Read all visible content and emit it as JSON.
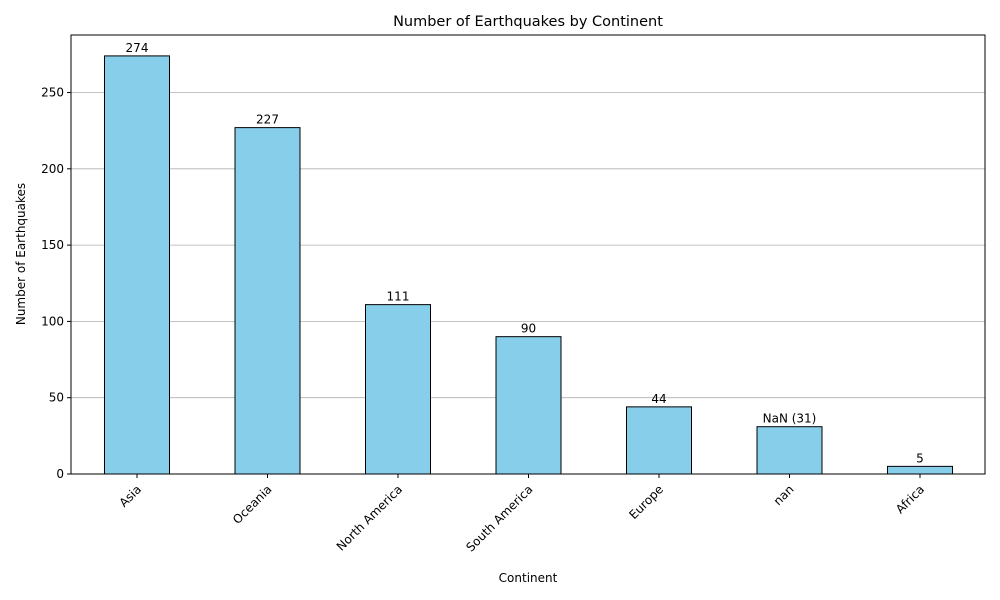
{
  "chart_data": {
    "type": "bar",
    "title": "Number of Earthquakes by Continent",
    "xlabel": "Continent",
    "ylabel": "Number of Earthquakes",
    "categories": [
      "Asia",
      "Oceania",
      "North America",
      "South America",
      "Europe",
      "nan",
      "Africa"
    ],
    "values": [
      274,
      227,
      111,
      90,
      44,
      31,
      5
    ],
    "value_labels": [
      "274",
      "227",
      "111",
      "90",
      "44",
      "NaN (31)",
      "5"
    ],
    "yticks": [
      0,
      50,
      100,
      150,
      200,
      250
    ],
    "ylim": [
      0,
      287.7
    ],
    "grid": "y",
    "bar_color": "#87CEEB",
    "edge_color": "#000000"
  }
}
